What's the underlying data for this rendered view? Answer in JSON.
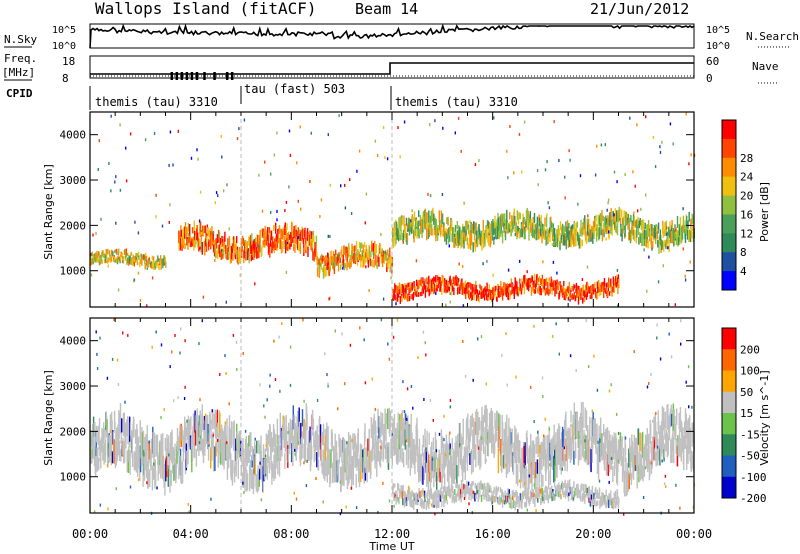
{
  "header": {
    "title": "Wallops Island (fitACF)",
    "beam": "Beam 14",
    "date": "21/Jun/2012"
  },
  "top_panels": {
    "nsky_label": "N.Sky",
    "nsky_ticks": [
      "10^5",
      "10^0"
    ],
    "nsearch_label": "N.Search",
    "nsearch_ticks": [
      "10^5",
      "10^0"
    ],
    "freq_label": "Freq.",
    "freq_unit": "[MHz]",
    "freq_ticks": [
      "18",
      "8"
    ],
    "nave_label": "Nave",
    "nave_ticks": [
      "60",
      "0"
    ],
    "cpid_label": "CPID",
    "cpid_segments": [
      {
        "label": "themis (tau) 3310",
        "start_hour": 0,
        "end_hour": 6
      },
      {
        "label": "tau (fast) 503",
        "start_hour": 6,
        "end_hour": 12
      },
      {
        "label": "themis (tau) 3310",
        "start_hour": 12,
        "end_hour": 24
      }
    ]
  },
  "chart_data": [
    {
      "type": "heatmap",
      "title": "",
      "ylabel": "Slant Range [km]",
      "xlabel": "Time UT",
      "xlim": [
        0,
        24
      ],
      "ylim": [
        200,
        4500
      ],
      "y_ticks": [
        "1000",
        "2000",
        "3000",
        "4000"
      ],
      "x_ticks": [
        "00:00",
        "04:00",
        "08:00",
        "12:00",
        "16:00",
        "20:00",
        "00:00"
      ],
      "colorbar": {
        "label": "Power [dB]",
        "ticks": [
          "4",
          "8",
          "12",
          "16",
          "20",
          "24",
          "28"
        ],
        "colors": [
          "#0000ff",
          "#1f4fa0",
          "#2e8b57",
          "#4aa05a",
          "#90c040",
          "#f0c010",
          "#ff8c00",
          "#ff4500",
          "#ff0000"
        ]
      },
      "features": [
        {
          "name": "E-region/near echoes",
          "hours": [
            0,
            3
          ],
          "range_km": [
            1100,
            1400
          ],
          "level_db": 18
        },
        {
          "name": "evening band",
          "hours": [
            3.5,
            9
          ],
          "range_km": [
            1300,
            1900
          ],
          "level_db": 24
        },
        {
          "name": "mid band",
          "hours": [
            9,
            12
          ],
          "range_km": [
            1000,
            1500
          ],
          "level_db": 22
        },
        {
          "name": "strong near-range layer",
          "hours": [
            12,
            21
          ],
          "range_km": [
            400,
            800
          ],
          "level_db": 28
        },
        {
          "name": "late band",
          "hours": [
            12,
            24
          ],
          "range_km": [
            1600,
            2200
          ],
          "level_db": 16
        }
      ]
    },
    {
      "type": "heatmap",
      "title": "",
      "ylabel": "Slant Range [km]",
      "xlabel": "Time UT",
      "xlim": [
        0,
        24
      ],
      "ylim": [
        200,
        4500
      ],
      "y_ticks": [
        "1000",
        "2000",
        "3000",
        "4000"
      ],
      "x_ticks": [
        "00:00",
        "04:00",
        "08:00",
        "12:00",
        "16:00",
        "20:00",
        "00:00"
      ],
      "colorbar": {
        "label": "Velocity [m s^-1]",
        "ticks": [
          "200",
          "100",
          "50",
          "15",
          "-15",
          "-50",
          "-100",
          "-200"
        ],
        "colors": [
          "#0000cc",
          "#1f5fbf",
          "#2e8b57",
          "#6cc24a",
          "#c0c0c0",
          "#ffa500",
          "#ff6600",
          "#ff0000"
        ]
      },
      "features": [
        {
          "name": "ground scatter band",
          "hours": [
            0,
            24
          ],
          "range_km": [
            1000,
            2200
          ],
          "velocity": 0
        },
        {
          "name": "near-range ground scatter",
          "hours": [
            12,
            21
          ],
          "range_km": [
            400,
            800
          ],
          "velocity": 0
        }
      ]
    }
  ],
  "xaxis_label": "Time UT"
}
